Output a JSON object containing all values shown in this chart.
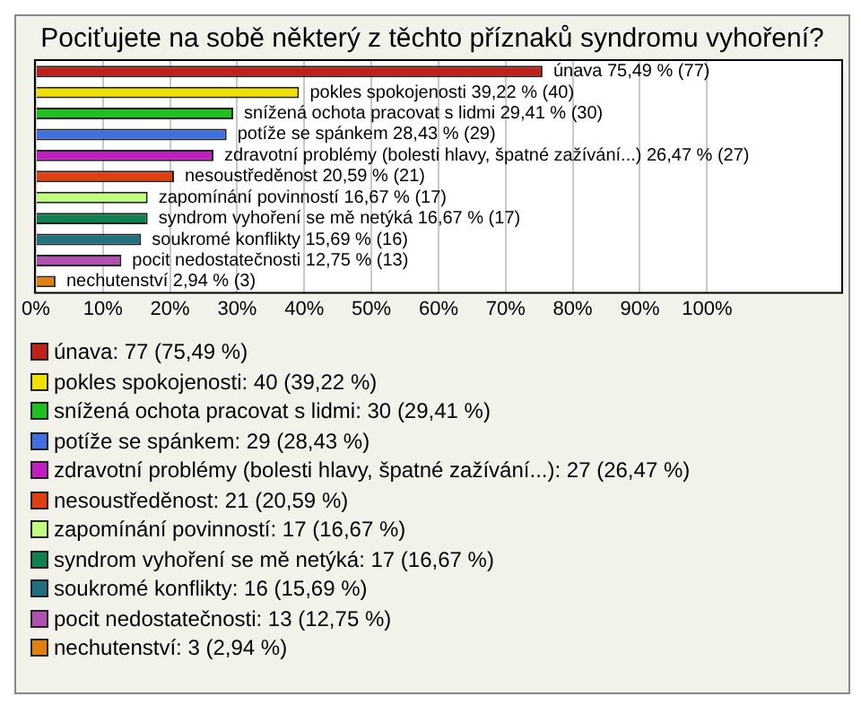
{
  "chart_data": {
    "type": "bar",
    "orientation": "horizontal",
    "title": "Pociťujete na sobě některý z těchto příznaků syndromu vyhoření?",
    "categories": [
      null,
      null,
      null,
      null,
      null,
      null,
      null,
      null,
      null,
      null,
      null
    ],
    "values": [
      75.49,
      39.22,
      29.41,
      28.43,
      26.47,
      20.59,
      16.67,
      16.67,
      15.69,
      12.75,
      2.94
    ],
    "colors": [
      "#c0201a",
      "#f0e000",
      "#20c020",
      "#4070e0",
      "#c020c0",
      "#e04010",
      "#c0ff80",
      "#108050",
      "#207080",
      "#b050b0",
      "#e08010"
    ],
    "value_labels": [
      "únava 75,49 % (77)",
      "pokles spokojenosti 39,22 % (40)",
      "snížená ochota pracovat s lidmi 29,41 % (30)",
      "potíže se spánkem 28,43 % (29)",
      "zdravotní problémy (bolesti hlavy, špatné zažívání...) 26,47 % (27)",
      "nesoustředěnost 20,59 % (21)",
      "zapomínání povinností 16,67 % (17)",
      "syndrom vyhoření se mě netýká 16,67 % (17)",
      "soukromé konflikty 15,69 % (16)",
      "pocit nedostatečnosti 12,75 % (13)",
      "nechutenství 2,94 % (3)"
    ],
    "xlim": [
      0,
      120
    ],
    "xticks": [
      {
        "value": 0,
        "label": "0%"
      },
      {
        "value": 10,
        "label": "10%"
      },
      {
        "value": 20,
        "label": "20%"
      },
      {
        "value": 30,
        "label": "30%"
      },
      {
        "value": 40,
        "label": "40%"
      },
      {
        "value": 50,
        "label": "50%"
      },
      {
        "value": 60,
        "label": "60%"
      },
      {
        "value": 70,
        "label": "70%"
      },
      {
        "value": 80,
        "label": "80%"
      },
      {
        "value": 90,
        "label": "90%"
      },
      {
        "value": 100,
        "label": "100%"
      }
    ],
    "grid": "x",
    "tick_labels": "x",
    "annotations": [
      "únava: 77 (75,49 %)",
      "pokles spokojenosti: 40 (39,22 %)",
      "snížená ochota pracovat s lidmi: 30 (29,41 %)",
      "potíže se spánkem: 29 (28,43 %)",
      "zdravotní problémy (bolesti hlavy, špatné zažívání...): 27 (26,47 %)",
      "nesoustředěnost: 21 (20,59 %)",
      "zapomínání povinností: 17 (16,67 %)",
      "syndrom vyhoření se mě netýká: 17 (16,67 %)",
      "soukromé konflikty: 16 (15,69 %)",
      "pocit nedostatečnosti: 13 (12,75 %)",
      "nechutenství: 3 (2,94 %)"
    ]
  }
}
